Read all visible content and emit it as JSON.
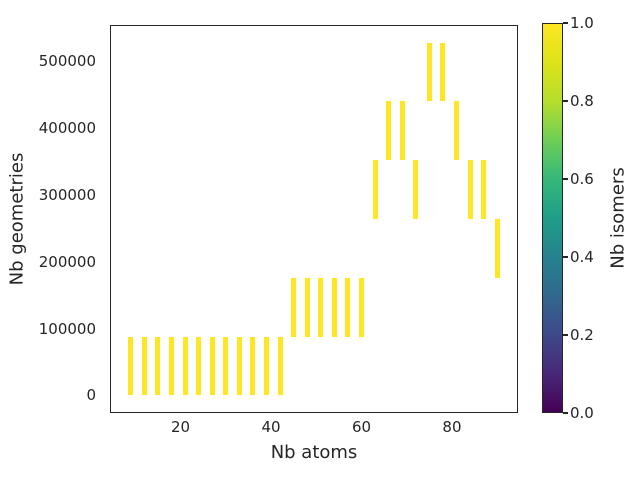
{
  "figure": {
    "background": "#ffffff",
    "axes_color": "#262626",
    "text_color": "#262626"
  },
  "chart_data": {
    "type": "bar",
    "title": "",
    "xlabel": "Nb atoms",
    "ylabel": "Nb geometries",
    "xlim": [
      4.4,
      94.6
    ],
    "ylim": [
      -26400,
      554400
    ],
    "grid": false,
    "x_ticks": [
      20,
      40,
      60,
      80
    ],
    "x_tick_labels": [
      "20",
      "40",
      "60",
      "80"
    ],
    "y_ticks": [
      0,
      100000,
      200000,
      300000,
      400000,
      500000
    ],
    "y_tick_labels": [
      "0",
      "100000",
      "200000",
      "300000",
      "400000",
      "500000"
    ],
    "bar_color": "#fde725",
    "bar_width_atoms": 1.1,
    "y_bin_size": 88000,
    "bars": [
      {
        "x": 9,
        "y0": 0,
        "y1": 88000,
        "color_value": 1.0
      },
      {
        "x": 12,
        "y0": 0,
        "y1": 88000,
        "color_value": 1.0
      },
      {
        "x": 15,
        "y0": 0,
        "y1": 88000,
        "color_value": 1.0
      },
      {
        "x": 18,
        "y0": 0,
        "y1": 88000,
        "color_value": 1.0
      },
      {
        "x": 21,
        "y0": 0,
        "y1": 88000,
        "color_value": 1.0
      },
      {
        "x": 24,
        "y0": 0,
        "y1": 88000,
        "color_value": 1.0
      },
      {
        "x": 27,
        "y0": 0,
        "y1": 88000,
        "color_value": 1.0
      },
      {
        "x": 30,
        "y0": 0,
        "y1": 88000,
        "color_value": 1.0
      },
      {
        "x": 33,
        "y0": 0,
        "y1": 88000,
        "color_value": 1.0
      },
      {
        "x": 36,
        "y0": 0,
        "y1": 88000,
        "color_value": 1.0
      },
      {
        "x": 39,
        "y0": 0,
        "y1": 88000,
        "color_value": 1.0
      },
      {
        "x": 42,
        "y0": 0,
        "y1": 88000,
        "color_value": 1.0
      },
      {
        "x": 45,
        "y0": 88000,
        "y1": 176000,
        "color_value": 1.0
      },
      {
        "x": 48,
        "y0": 88000,
        "y1": 176000,
        "color_value": 1.0
      },
      {
        "x": 51,
        "y0": 88000,
        "y1": 176000,
        "color_value": 1.0
      },
      {
        "x": 54,
        "y0": 88000,
        "y1": 176000,
        "color_value": 1.0
      },
      {
        "x": 57,
        "y0": 88000,
        "y1": 176000,
        "color_value": 1.0
      },
      {
        "x": 60,
        "y0": 88000,
        "y1": 176000,
        "color_value": 1.0
      },
      {
        "x": 63,
        "y0": 264000,
        "y1": 352000,
        "color_value": 1.0
      },
      {
        "x": 66,
        "y0": 352000,
        "y1": 440000,
        "color_value": 1.0
      },
      {
        "x": 69,
        "y0": 352000,
        "y1": 440000,
        "color_value": 1.0
      },
      {
        "x": 72,
        "y0": 264000,
        "y1": 352000,
        "color_value": 1.0
      },
      {
        "x": 75,
        "y0": 440000,
        "y1": 528000,
        "color_value": 1.0
      },
      {
        "x": 78,
        "y0": 440000,
        "y1": 528000,
        "color_value": 1.0
      },
      {
        "x": 81,
        "y0": 352000,
        "y1": 440000,
        "color_value": 1.0
      },
      {
        "x": 84,
        "y0": 264000,
        "y1": 352000,
        "color_value": 1.0
      },
      {
        "x": 87,
        "y0": 264000,
        "y1": 352000,
        "color_value": 1.0
      },
      {
        "x": 90,
        "y0": 176000,
        "y1": 264000,
        "color_value": 1.0
      }
    ],
    "colorbar": {
      "label": "Nb isomers",
      "colormap": "viridis",
      "range": [
        0.0,
        1.0
      ],
      "ticks": [
        0.0,
        0.2,
        0.4,
        0.6,
        0.8,
        1.0
      ],
      "tick_labels": [
        "0.0",
        "0.2",
        "0.4",
        "0.6",
        "0.8",
        "1.0"
      ],
      "stops": [
        "#440154",
        "#482878",
        "#3e4989",
        "#31688e",
        "#26828e",
        "#1f9e89",
        "#35b779",
        "#6ece58",
        "#b5de2b",
        "#dde318",
        "#fde725"
      ]
    }
  }
}
